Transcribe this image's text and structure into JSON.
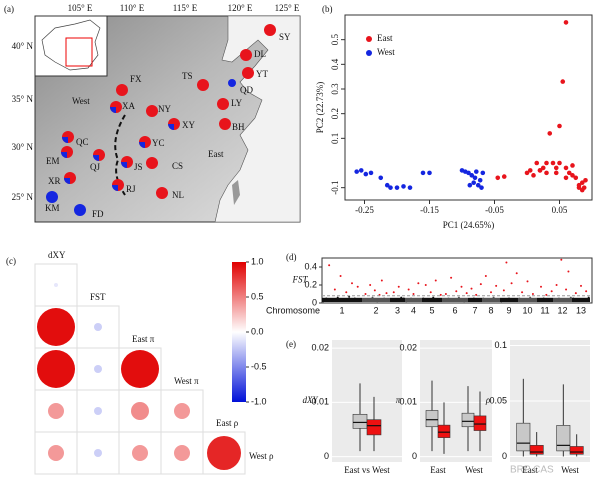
{
  "map": {
    "label": "(a)",
    "lon_ticks": [
      "105° E",
      "110° E",
      "115° E",
      "120° E",
      "125° E"
    ],
    "lat_ticks": [
      "40° N",
      "35° N",
      "30° N",
      "25° N"
    ],
    "regions": [
      "West",
      "East"
    ],
    "sites": [
      "SY",
      "DL",
      "YT",
      "QD",
      "TS",
      "FX",
      "XA",
      "NY",
      "LY",
      "XY",
      "BH",
      "QC",
      "EM",
      "QJ",
      "YC",
      "JS",
      "CS",
      "XR",
      "RJ",
      "NL",
      "KM",
      "FD"
    ]
  },
  "watermark": "BRP CAS",
  "chart_data": [
    {
      "type": "scatter",
      "label": "(b)",
      "x_label": "PC1 (24.65%)",
      "y_label": "PC2 (22.73%)",
      "xlim": [
        -0.28,
        0.1
      ],
      "ylim": [
        -0.15,
        0.6
      ],
      "xticks": [
        -0.25,
        -0.15,
        -0.05,
        0.05
      ],
      "yticks": [
        -0.1,
        0.1,
        0.2,
        0.3,
        0.4,
        0.5
      ],
      "legend": "top-left",
      "series": [
        {
          "name": "East",
          "color": "#e8141c",
          "x": [
            -0.045,
            -0.035,
            0.0,
            0.005,
            0.01,
            0.015,
            0.02,
            0.025,
            0.03,
            0.035,
            0.04,
            0.045,
            0.05,
            0.055,
            0.06,
            0.065,
            0.07,
            0.075,
            0.08,
            0.085,
            0.088,
            0.09,
            0.06,
            0.07,
            0.08,
            0.085,
            0.05,
            0.03,
            0.02,
            0.045,
            0.06
          ],
          "values": [
            -0.06,
            -0.055,
            -0.04,
            -0.03,
            -0.05,
            0.0,
            -0.03,
            -0.02,
            -0.04,
            0.12,
            0.0,
            -0.02,
            0.0,
            0.33,
            0.57,
            -0.04,
            -0.01,
            -0.06,
            -0.09,
            -0.08,
            -0.1,
            -0.07,
            -0.02,
            -0.05,
            -0.1,
            -0.11,
            0.15,
            0.0,
            -0.03,
            -0.04,
            -0.06
          ]
        },
        {
          "name": "West",
          "color": "#1426e0",
          "x": [
            -0.262,
            -0.255,
            -0.248,
            -0.24,
            -0.225,
            -0.215,
            -0.21,
            -0.2,
            -0.19,
            -0.18,
            -0.16,
            -0.15,
            -0.1,
            -0.095,
            -0.09,
            -0.085,
            -0.08,
            -0.078,
            -0.075,
            -0.072,
            -0.07,
            -0.068,
            -0.088,
            -0.082
          ],
          "values": [
            -0.035,
            -0.03,
            -0.045,
            -0.04,
            -0.06,
            -0.09,
            -0.1,
            -0.1,
            -0.095,
            -0.1,
            -0.04,
            -0.04,
            -0.03,
            -0.035,
            -0.04,
            -0.05,
            -0.06,
            -0.035,
            -0.09,
            -0.07,
            -0.1,
            -0.04,
            -0.09,
            -0.08
          ]
        }
      ]
    },
    {
      "type": "corrplot",
      "label": "(c)",
      "variables": [
        "dXY",
        "FST",
        "East π",
        "West π",
        "East ρ",
        "West ρ"
      ],
      "matrix": [
        [
          -0.1
        ],
        [
          0.95,
          -0.2
        ],
        [
          0.95,
          -0.2,
          0.95
        ],
        [
          0.4,
          -0.2,
          0.45,
          0.4
        ],
        [
          0.4,
          -0.2,
          0.4,
          0.4,
          0.85
        ]
      ],
      "clim": [
        -1,
        1
      ],
      "cticks": [
        {
          "value": 1,
          "label": "1.0"
        },
        0.5,
        {
          "value": 0,
          "label": "0.0"
        },
        -0.5,
        {
          "value": -1,
          "label": "-1.0"
        }
      ]
    },
    {
      "type": "manhattan",
      "label": "(d)",
      "y_label": "FST",
      "x_label": "Chromosome",
      "ylim": [
        0,
        0.5
      ],
      "yticks": [
        0,
        0.2,
        0.4
      ],
      "threshold": 0.08,
      "categories": [
        "1",
        "2",
        "3",
        "4",
        "5",
        "6",
        "7",
        "8",
        "9",
        "10",
        "11",
        "12",
        "13"
      ],
      "values": [
        [
          0.02,
          0.05,
          0.42,
          0.03,
          0.15,
          0.06,
          0.3,
          0.04,
          0.12,
          0.07,
          0.22,
          0.05,
          0.18,
          0.03
        ],
        [
          0.03,
          0.1,
          0.04,
          0.2,
          0.06,
          0.14,
          0.02,
          0.09,
          0.25,
          0.05,
          0.11,
          0.04
        ],
        [
          0.04,
          0.12,
          0.03,
          0.18,
          0.06,
          0.05
        ],
        [
          0.02,
          0.15,
          0.05,
          0.1,
          0.03,
          0.22,
          0.04
        ],
        [
          0.05,
          0.2,
          0.03,
          0.12,
          0.06,
          0.25,
          0.04,
          0.09
        ],
        [
          0.03,
          0.1,
          0.05,
          0.28,
          0.04,
          0.13,
          0.06,
          0.18,
          0.02,
          0.11
        ],
        [
          0.04,
          0.16,
          0.05,
          0.09,
          0.03,
          0.21
        ],
        [
          0.05,
          0.3,
          0.03,
          0.12,
          0.06,
          0.19,
          0.04
        ],
        [
          0.02,
          0.14,
          0.45,
          0.05,
          0.22,
          0.04,
          0.33
        ],
        [
          0.05,
          0.12,
          0.03,
          0.24,
          0.06,
          0.1,
          0.04
        ],
        [
          0.04,
          0.18,
          0.05,
          0.09,
          0.03,
          0.13
        ],
        [
          0.03,
          0.2,
          0.05,
          0.48,
          0.04,
          0.15,
          0.35,
          0.06
        ],
        [
          0.05,
          0.11,
          0.03,
          0.19,
          0.04,
          0.13,
          0.06
        ]
      ]
    },
    {
      "type": "box",
      "label": "(e)",
      "y_label": "dXY",
      "categories": [
        "East vs West"
      ],
      "ylim": [
        -0.001,
        0.0215
      ],
      "yticks": [
        0,
        0.01,
        0.02
      ],
      "series": [
        {
          "color": "#c8c8c8",
          "values": [
            {
              "min": 0.001,
              "q1": 0.0052,
              "median": 0.0063,
              "q3": 0.0078,
              "max": 0.0135
            }
          ]
        },
        {
          "color": "#ee1111",
          "values": [
            {
              "min": 0.001,
              "q1": 0.004,
              "median": 0.0057,
              "q3": 0.0068,
              "max": 0.011
            }
          ]
        }
      ]
    },
    {
      "type": "box",
      "y_label": "π",
      "categories": [
        "East",
        "West"
      ],
      "ylim": [
        -0.001,
        0.0215
      ],
      "yticks": [
        0,
        0.01,
        0.02
      ],
      "series": [
        {
          "color": "#c8c8c8",
          "values": [
            {
              "min": 0.001,
              "q1": 0.0055,
              "median": 0.0068,
              "q3": 0.0085,
              "max": 0.014
            },
            {
              "min": 0.001,
              "q1": 0.0055,
              "median": 0.0065,
              "q3": 0.008,
              "max": 0.013
            }
          ]
        },
        {
          "color": "#ee1111",
          "values": [
            {
              "min": 0.0005,
              "q1": 0.0035,
              "median": 0.0045,
              "q3": 0.0058,
              "max": 0.01
            },
            {
              "min": 0.001,
              "q1": 0.0048,
              "median": 0.006,
              "q3": 0.0075,
              "max": 0.012
            }
          ]
        }
      ]
    },
    {
      "type": "box",
      "y_label": "ρ",
      "categories": [
        "East",
        "West"
      ],
      "ylim": [
        -0.005,
        0.105
      ],
      "yticks": [
        0,
        0.05,
        0.1
      ],
      "series": [
        {
          "color": "#c8c8c8",
          "values": [
            {
              "min": 0,
              "q1": 0.005,
              "median": 0.012,
              "q3": 0.03,
              "max": 0.07
            },
            {
              "min": 0,
              "q1": 0.005,
              "median": 0.01,
              "q3": 0.028,
              "max": 0.065
            }
          ]
        },
        {
          "color": "#ee1111",
          "values": [
            {
              "min": 0,
              "q1": 0.002,
              "median": 0.004,
              "q3": 0.01,
              "max": 0.022
            },
            {
              "min": 0,
              "q1": 0.002,
              "median": 0.004,
              "q3": 0.009,
              "max": 0.02
            }
          ]
        }
      ]
    }
  ]
}
